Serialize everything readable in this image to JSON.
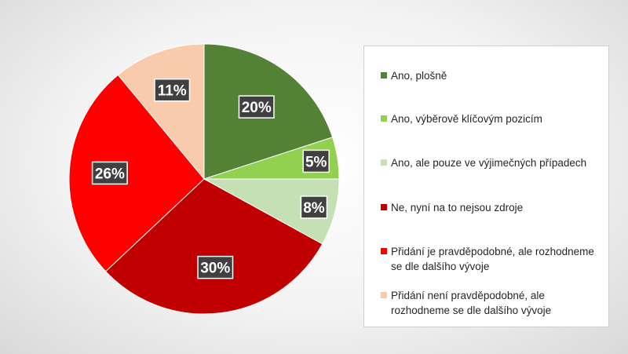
{
  "chart_data": {
    "type": "pie",
    "categories": [
      "Ano, plošně",
      "Ano, výběrově klíčovým pozicím",
      "Ano, ale pouze ve výjimečných případech",
      "Ne, nyní na to nejsou zdroje",
      "Přidání je pravděpodobné, ale rozhodneme se dle dalšího vývoje",
      "Přidání není pravděpodobné, ale rozhodneme se dle dalšího vývoje"
    ],
    "values": [
      20,
      5,
      8,
      30,
      26,
      11
    ],
    "data_labels": [
      "20%",
      "5%",
      "8%",
      "30%",
      "26%",
      "11%"
    ],
    "colors": [
      "#548235",
      "#92d050",
      "#c5e0b4",
      "#c00000",
      "#ff0000",
      "#f8cbad"
    ],
    "start_angle_deg": 0,
    "direction": "clockwise",
    "legend_position": "right"
  },
  "legend": {
    "items": [
      {
        "label": "Ano, plošně",
        "color": "#548235"
      },
      {
        "label": "Ano, výběrově klíčovým pozicím",
        "color": "#92d050"
      },
      {
        "label": "Ano, ale pouze ve výjimečných případech",
        "color": "#c5e0b4"
      },
      {
        "label": "Ne, nyní na to nejsou zdroje",
        "color": "#c00000"
      },
      {
        "label": "Přidání je pravděpodobné, ale rozhodneme se dle dalšího vývoje",
        "color": "#ff0000"
      },
      {
        "label": "Přidání není pravděpodobné, ale rozhodneme se dle dalšího vývoje",
        "color": "#f8cbad"
      }
    ]
  }
}
